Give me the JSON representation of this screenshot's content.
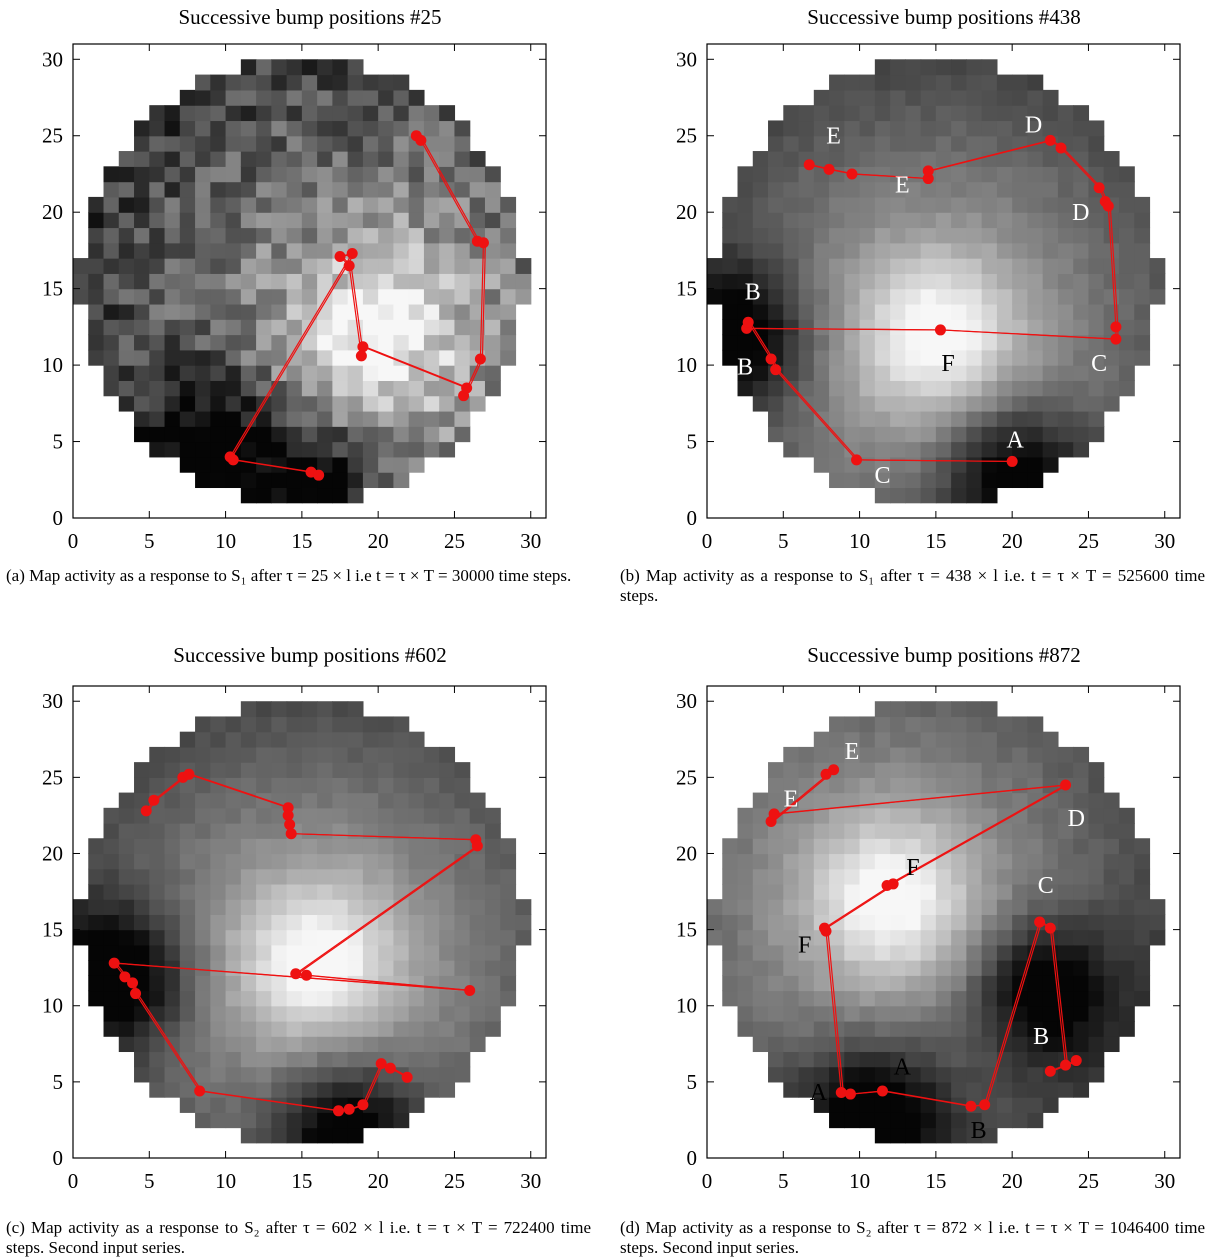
{
  "panels": [
    {
      "title": "Successive bump positions #25",
      "caption": "(a) Map activity as a response to S₁ after τ = 25 × l i.e t = τ × T = 30000 time steps."
    },
    {
      "title": "Successive bump positions #438",
      "caption": "(b) Map activity as a response to S₁ after τ = 438 × l i.e. t = τ × T = 525600 time steps."
    },
    {
      "title": "Successive bump positions #602",
      "caption": "(c) Map activity as a response to S₂ after τ = 602 × l i.e. t = τ × T = 722400 time steps. Second input series."
    },
    {
      "title": "Successive bump positions #872",
      "caption": "(d) Map activity as a response to S₂ after τ = 872 × l i.e. t = τ × T = 1046400 time steps. Second input series."
    }
  ],
  "chart_data": [
    {
      "type": "heatmap",
      "title": "Successive bump positions #25",
      "xlim": [
        0,
        31
      ],
      "ylim": [
        0,
        31
      ],
      "xticks": [
        "0",
        "5",
        "10",
        "15",
        "20",
        "25",
        "30"
      ],
      "yticks": [
        "0",
        "5",
        "10",
        "15",
        "20",
        "25",
        "30"
      ],
      "colormap": "grayscale",
      "bright_center": [
        20,
        12
      ],
      "dark_regions": [
        [
          16,
          2
        ],
        [
          9,
          5
        ]
      ],
      "trajectory_color": "#ee1111",
      "points": [
        [
          22.5,
          25
        ],
        [
          22.8,
          24.7
        ],
        [
          26.5,
          18.1
        ],
        [
          26.9,
          18
        ],
        [
          26.7,
          10.4
        ],
        [
          25.6,
          8
        ],
        [
          25.8,
          8.5
        ],
        [
          19,
          11.2
        ],
        [
          18.9,
          10.6
        ],
        [
          18.1,
          16.5
        ],
        [
          17.5,
          17.1
        ],
        [
          18.3,
          17.3
        ],
        [
          10.3,
          4
        ],
        [
          10.5,
          3.8
        ],
        [
          15.6,
          3
        ],
        [
          16.1,
          2.8
        ]
      ],
      "labels": []
    },
    {
      "type": "heatmap",
      "title": "Successive bump positions #438",
      "xlim": [
        0,
        31
      ],
      "ylim": [
        0,
        31
      ],
      "xticks": [
        "0",
        "5",
        "10",
        "15",
        "20",
        "25",
        "30"
      ],
      "yticks": [
        "0",
        "5",
        "10",
        "15",
        "20",
        "25",
        "30"
      ],
      "colormap": "grayscale",
      "bright_center": [
        15,
        12
      ],
      "dark_regions": [
        [
          20,
          3
        ],
        [
          2,
          12
        ]
      ],
      "trajectory_color": "#ee1111",
      "points": [
        [
          6.7,
          23.1
        ],
        [
          8,
          22.8
        ],
        [
          9.5,
          22.5
        ],
        [
          14.5,
          22.2
        ],
        [
          14.5,
          22.7
        ],
        [
          22.5,
          24.7
        ],
        [
          23.2,
          24.2
        ],
        [
          25.7,
          21.6
        ],
        [
          26.1,
          20.7
        ],
        [
          26.3,
          20.4
        ],
        [
          26.8,
          12.5
        ],
        [
          26.8,
          11.7
        ],
        [
          15.3,
          12.3
        ],
        [
          2.6,
          12.4
        ],
        [
          2.7,
          12.8
        ],
        [
          4.2,
          10.4
        ],
        [
          4.5,
          9.7
        ],
        [
          9.8,
          3.8
        ],
        [
          20,
          3.7
        ]
      ],
      "labels": [
        {
          "text": "E",
          "x": 8.3,
          "y": 24.5,
          "color": "#ffffff"
        },
        {
          "text": "E",
          "x": 12.8,
          "y": 21.3,
          "color": "#ffffff"
        },
        {
          "text": "D",
          "x": 21.4,
          "y": 25.2,
          "color": "#ffffff"
        },
        {
          "text": "D",
          "x": 24.5,
          "y": 19.5,
          "color": "#ffffff"
        },
        {
          "text": "B",
          "x": 3,
          "y": 14.3,
          "color": "#ffffff"
        },
        {
          "text": "B",
          "x": 2.5,
          "y": 9.4,
          "color": "#ffffff"
        },
        {
          "text": "F",
          "x": 15.8,
          "y": 9.6,
          "color": "#000000"
        },
        {
          "text": "C",
          "x": 25.7,
          "y": 9.6,
          "color": "#ffffff"
        },
        {
          "text": "A",
          "x": 20.2,
          "y": 4.6,
          "color": "#ffffff"
        },
        {
          "text": "C",
          "x": 11.5,
          "y": 2.3,
          "color": "#ffffff"
        }
      ]
    },
    {
      "type": "heatmap",
      "title": "Successive bump positions #602",
      "xlim": [
        0,
        31
      ],
      "ylim": [
        0,
        31
      ],
      "xticks": [
        "0",
        "5",
        "10",
        "15",
        "20",
        "25",
        "30"
      ],
      "yticks": [
        "0",
        "5",
        "10",
        "15",
        "20",
        "25",
        "30"
      ],
      "colormap": "grayscale",
      "bright_center": [
        16,
        13
      ],
      "dark_regions": [
        [
          18,
          2
        ],
        [
          3,
          12
        ]
      ],
      "trajectory_color": "#ee1111",
      "points": [
        [
          4.8,
          22.8
        ],
        [
          5.3,
          23.5
        ],
        [
          7.2,
          25
        ],
        [
          7.6,
          25.2
        ],
        [
          14.1,
          23
        ],
        [
          14.1,
          22.5
        ],
        [
          14.2,
          21.9
        ],
        [
          14.3,
          21.3
        ],
        [
          26.4,
          20.9
        ],
        [
          26.5,
          20.5
        ],
        [
          14.6,
          12.1
        ],
        [
          15.3,
          12
        ],
        [
          26,
          11
        ],
        [
          2.7,
          12.8
        ],
        [
          3.4,
          11.9
        ],
        [
          3.9,
          11.5
        ],
        [
          4.1,
          10.8
        ],
        [
          8.3,
          4.4
        ],
        [
          17.4,
          3.1
        ],
        [
          18.1,
          3.2
        ],
        [
          19,
          3.5
        ],
        [
          20.2,
          6.2
        ],
        [
          20.8,
          5.9
        ],
        [
          21.9,
          5.3
        ]
      ],
      "labels": []
    },
    {
      "type": "heatmap",
      "title": "Successive bump positions #872",
      "xlim": [
        0,
        31
      ],
      "ylim": [
        0,
        31
      ],
      "xticks": [
        "0",
        "5",
        "10",
        "15",
        "20",
        "25",
        "30"
      ],
      "yticks": [
        "0",
        "5",
        "10",
        "15",
        "20",
        "25",
        "30"
      ],
      "colormap": "grayscale",
      "bright_center": [
        12,
        17
      ],
      "dark_regions": [
        [
          11,
          3
        ],
        [
          22,
          11
        ]
      ],
      "trajectory_color": "#ee1111",
      "points": [
        [
          7.8,
          25.2
        ],
        [
          8.3,
          25.5
        ],
        [
          4.2,
          22.1
        ],
        [
          4.4,
          22.6
        ],
        [
          23.5,
          24.5
        ],
        [
          11.8,
          17.9
        ],
        [
          12.2,
          18
        ],
        [
          7.7,
          15.1
        ],
        [
          7.8,
          14.9
        ],
        [
          8.8,
          4.3
        ],
        [
          9.4,
          4.2
        ],
        [
          11.5,
          4.4
        ],
        [
          17.3,
          3.4
        ],
        [
          18.2,
          3.5
        ],
        [
          21.8,
          15.5
        ],
        [
          22.5,
          15.1
        ],
        [
          23.5,
          6.1
        ],
        [
          24.2,
          6.4
        ],
        [
          22.5,
          5.7
        ]
      ],
      "labels": [
        {
          "text": "E",
          "x": 9.5,
          "y": 26.2,
          "color": "#ffffff"
        },
        {
          "text": "E",
          "x": 5.5,
          "y": 23.1,
          "color": "#ffffff"
        },
        {
          "text": "D",
          "x": 24.2,
          "y": 21.8,
          "color": "#ffffff"
        },
        {
          "text": "F",
          "x": 13.5,
          "y": 18.6,
          "color": "#000000"
        },
        {
          "text": "F",
          "x": 6.4,
          "y": 13.5,
          "color": "#000000"
        },
        {
          "text": "C",
          "x": 22.2,
          "y": 17.4,
          "color": "#ffffff"
        },
        {
          "text": "B",
          "x": 21.9,
          "y": 7.5,
          "color": "#ffffff"
        },
        {
          "text": "A",
          "x": 12.8,
          "y": 5.5,
          "color": "#000000"
        },
        {
          "text": "A",
          "x": 7.3,
          "y": 3.8,
          "color": "#000000"
        },
        {
          "text": "B",
          "x": 17.8,
          "y": 1.3,
          "color": "#000000"
        }
      ]
    }
  ]
}
